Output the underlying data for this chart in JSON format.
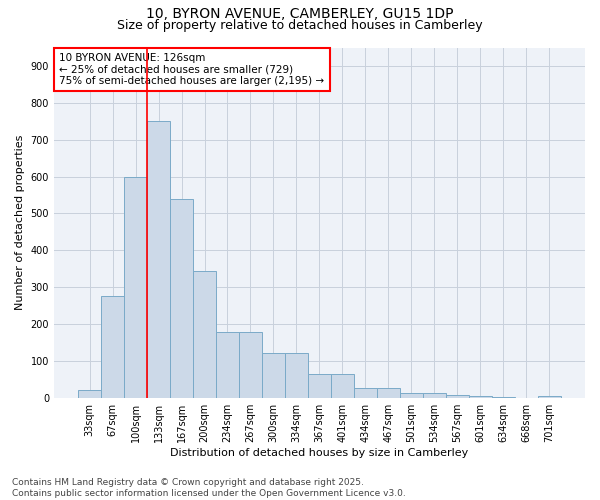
{
  "title_line1": "10, BYRON AVENUE, CAMBERLEY, GU15 1DP",
  "title_line2": "Size of property relative to detached houses in Camberley",
  "xlabel": "Distribution of detached houses by size in Camberley",
  "ylabel": "Number of detached properties",
  "categories": [
    "33sqm",
    "67sqm",
    "100sqm",
    "133sqm",
    "167sqm",
    "200sqm",
    "234sqm",
    "267sqm",
    "300sqm",
    "334sqm",
    "367sqm",
    "401sqm",
    "434sqm",
    "467sqm",
    "501sqm",
    "534sqm",
    "567sqm",
    "601sqm",
    "634sqm",
    "668sqm",
    "701sqm"
  ],
  "values": [
    22,
    275,
    600,
    750,
    540,
    345,
    178,
    178,
    120,
    120,
    65,
    65,
    25,
    25,
    12,
    12,
    8,
    4,
    2,
    0,
    5
  ],
  "bar_color": "#ccd9e8",
  "bar_edge_color": "#7aaac8",
  "vline_color": "red",
  "vline_x_index": 3,
  "annotation_text": "10 BYRON AVENUE: 126sqm\n← 25% of detached houses are smaller (729)\n75% of semi-detached houses are larger (2,195) →",
  "annotation_box_color": "white",
  "annotation_box_edge_color": "red",
  "ylim": [
    0,
    950
  ],
  "yticks": [
    0,
    100,
    200,
    300,
    400,
    500,
    600,
    700,
    800,
    900
  ],
  "background_color": "#eef2f8",
  "grid_color": "#c8d0dc",
  "footnote": "Contains HM Land Registry data © Crown copyright and database right 2025.\nContains public sector information licensed under the Open Government Licence v3.0.",
  "title_fontsize": 10,
  "subtitle_fontsize": 9,
  "axis_label_fontsize": 8,
  "tick_fontsize": 7,
  "annotation_fontsize": 7.5,
  "footnote_fontsize": 6.5
}
